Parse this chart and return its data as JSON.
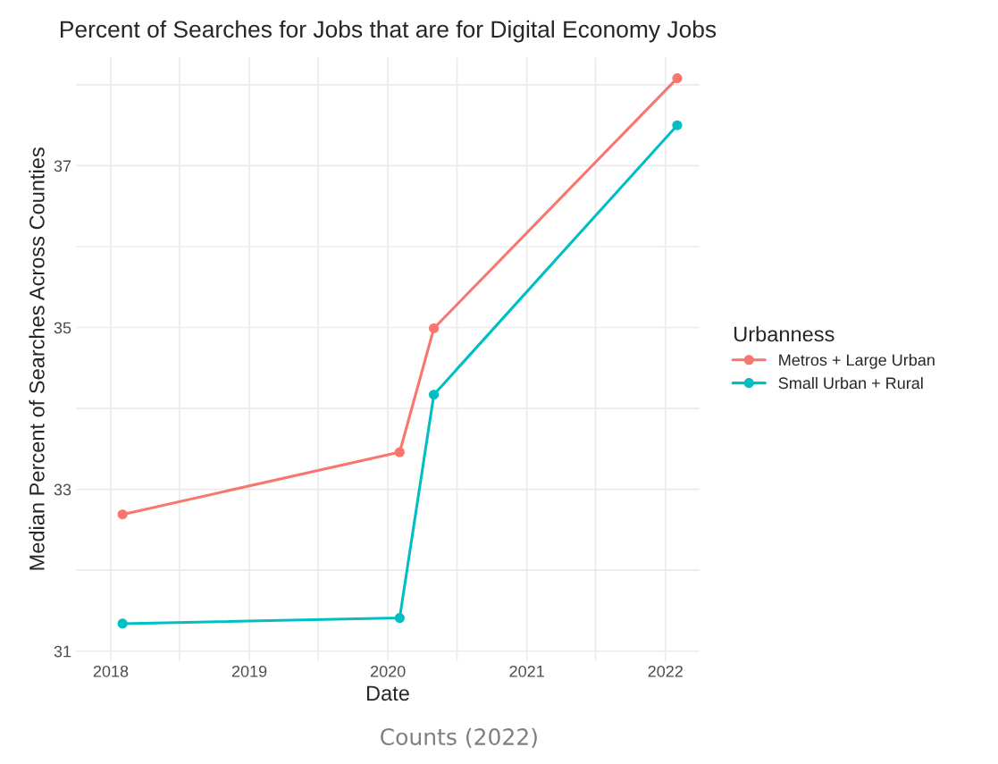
{
  "chart_data": {
    "type": "line",
    "title": "Percent of Searches for Jobs that are for Digital Economy Jobs",
    "xlabel": "Date",
    "ylabel": "Median Percent of Searches Across Counties",
    "legend_title": "Urbanness",
    "x": [
      "2018-02",
      "2020-02",
      "2020-05",
      "2022-02"
    ],
    "series": [
      {
        "name": "Metros + Large Urban",
        "color": "#f8766d",
        "values": [
          32.69,
          33.46,
          34.99,
          38.08
        ]
      },
      {
        "name": "Small Urban + Rural",
        "color": "#00bfc4",
        "values": [
          31.34,
          31.41,
          34.17,
          37.5
        ]
      }
    ],
    "xlim": [
      "2017-10",
      "2022-04"
    ],
    "ylim": [
      30.88,
      38.34
    ],
    "xticks": [
      "2018",
      {
        "value": "2018-07",
        "label": null
      },
      "2019",
      {
        "value": "2019-07",
        "label": null
      },
      "2020",
      {
        "value": "2020-07",
        "label": null
      },
      "2021",
      {
        "value": "2021-07",
        "label": null
      },
      "2022"
    ],
    "yticks": [
      31,
      {
        "value": 32,
        "label": null
      },
      33,
      {
        "value": 34,
        "label": null
      },
      35,
      {
        "value": 36,
        "label": null
      },
      37,
      {
        "value": 38,
        "label": null
      }
    ],
    "grid": true,
    "legend": "right",
    "marker": "circle",
    "line_style": "solid",
    "annotations": [
      "Counts (2022)"
    ]
  }
}
